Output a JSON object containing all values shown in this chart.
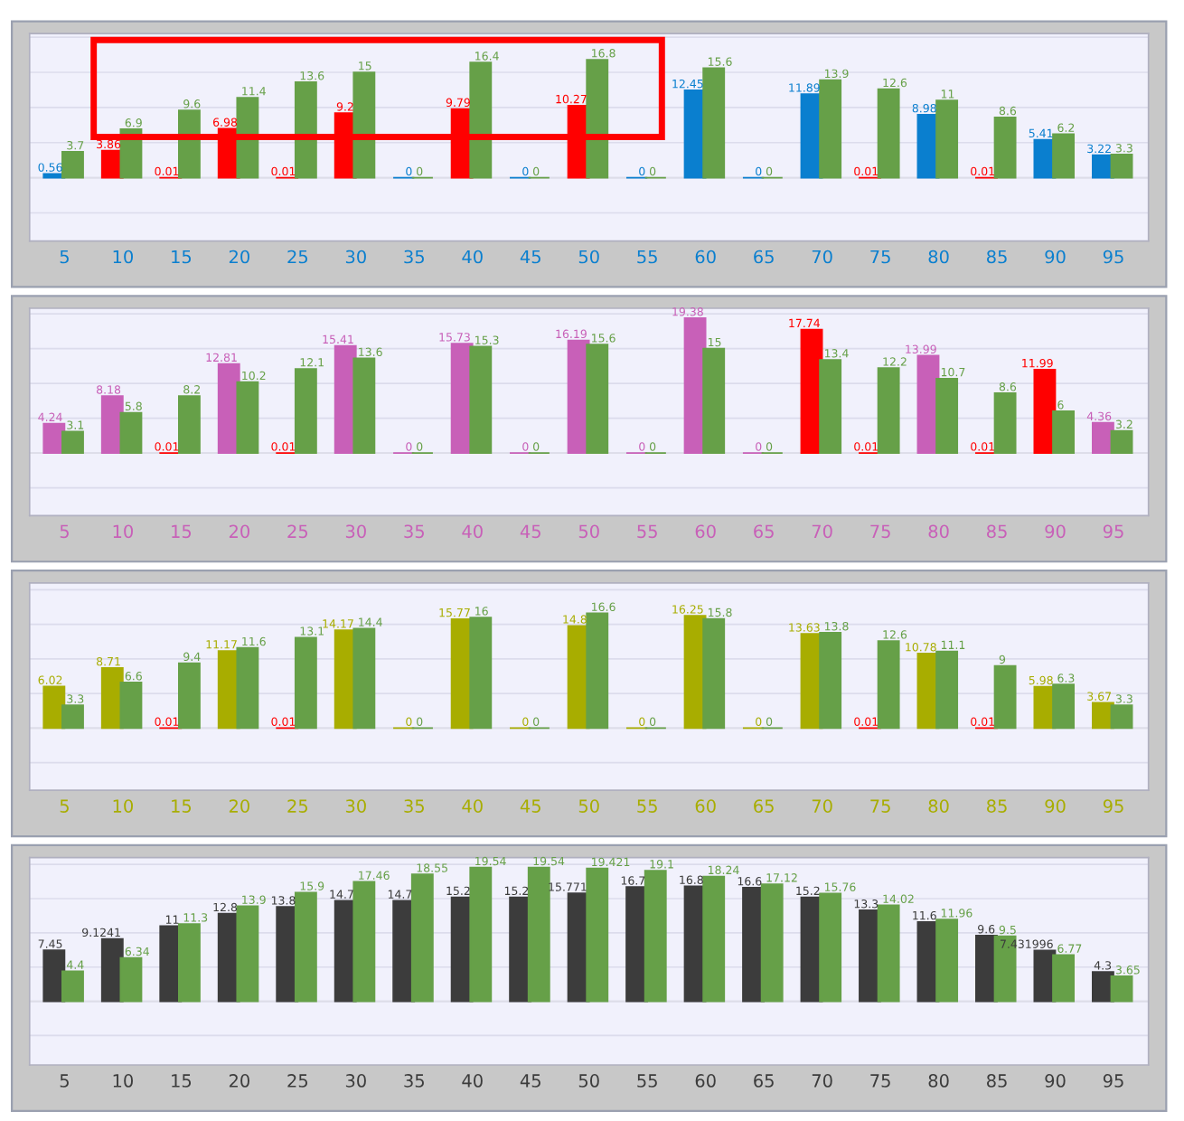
{
  "chart_data": [
    {
      "type": "bar",
      "categories": [
        "5",
        "10",
        "15",
        "20",
        "25",
        "30",
        "35",
        "40",
        "45",
        "50",
        "55",
        "60",
        "65",
        "70",
        "75",
        "80",
        "85",
        "90",
        "95"
      ],
      "ylim": [
        -9,
        20.5
      ],
      "grid": "y",
      "tick_labels": "x",
      "data_labels": true,
      "series": [
        {
          "values": [
            0.56,
            3.86,
            0.01,
            6.98,
            0.01,
            9.2,
            0,
            9.79,
            0,
            10.27,
            0,
            12.45,
            0,
            11.89,
            0.01,
            8.98,
            0.01,
            5.41,
            3.22
          ],
          "colors": [
            "#0a7fcf",
            "#ff0000",
            "#ff0000",
            "#ff0000",
            "#ff0000",
            "#ff0000",
            "#0a7fcf",
            "#ff0000",
            "#0a7fcf",
            "#ff0000",
            "#0a7fcf",
            "#0a7fcf",
            "#0a7fcf",
            "#0a7fcf",
            "#ff0000",
            "#0a7fcf",
            "#ff0000",
            "#0a7fcf",
            "#0a7fcf"
          ]
        },
        {
          "color": "#66a048",
          "values": [
            3.7,
            6.9,
            9.6,
            11.4,
            13.6,
            15,
            0,
            16.4,
            0,
            16.8,
            0,
            15.6,
            0,
            13.9,
            12.6,
            11,
            8.6,
            6.2,
            3.3
          ]
        }
      ]
    },
    {
      "type": "bar",
      "categories": [
        "5",
        "10",
        "15",
        "20",
        "25",
        "30",
        "35",
        "40",
        "45",
        "50",
        "55",
        "60",
        "65",
        "70",
        "75",
        "80",
        "85",
        "90",
        "95"
      ],
      "ylim": [
        -9,
        20.8
      ],
      "grid": "y",
      "tick_labels": "x",
      "data_labels": true,
      "series": [
        {
          "values": [
            4.24,
            8.18,
            0.01,
            12.81,
            0.01,
            15.41,
            0,
            15.73,
            0,
            16.19,
            0,
            19.38,
            0,
            17.74,
            0.01,
            13.99,
            0.01,
            11.99,
            4.36
          ],
          "colors": [
            "#c860b8",
            "#c860b8",
            "#ff0000",
            "#c860b8",
            "#ff0000",
            "#c860b8",
            "#c860b8",
            "#c860b8",
            "#c860b8",
            "#c860b8",
            "#c860b8",
            "#c860b8",
            "#c860b8",
            "#ff0000",
            "#ff0000",
            "#c860b8",
            "#ff0000",
            "#ff0000",
            "#c860b8"
          ]
        },
        {
          "color": "#66a048",
          "values": [
            3.1,
            5.8,
            8.2,
            10.2,
            12.1,
            13.6,
            0,
            15.3,
            0,
            15.6,
            0,
            15,
            0,
            13.4,
            12.2,
            10.7,
            8.6,
            6,
            3.2
          ]
        }
      ]
    },
    {
      "type": "bar",
      "categories": [
        "5",
        "10",
        "15",
        "20",
        "25",
        "30",
        "35",
        "40",
        "45",
        "50",
        "55",
        "60",
        "65",
        "70",
        "75",
        "80",
        "85",
        "90",
        "95"
      ],
      "ylim": [
        -9,
        21
      ],
      "grid": "y",
      "tick_labels": "x",
      "data_labels": true,
      "series": [
        {
          "values": [
            6.02,
            8.71,
            0.01,
            11.17,
            0.01,
            14.17,
            0,
            15.77,
            0,
            14.8,
            0,
            16.25,
            0,
            13.63,
            0.01,
            10.78,
            0.01,
            5.98,
            3.67
          ],
          "colors": [
            "#a8ad00",
            "#a8ad00",
            "#ff0000",
            "#a8ad00",
            "#ff0000",
            "#a8ad00",
            "#a8ad00",
            "#a8ad00",
            "#a8ad00",
            "#a8ad00",
            "#a8ad00",
            "#a8ad00",
            "#a8ad00",
            "#a8ad00",
            "#ff0000",
            "#a8ad00",
            "#ff0000",
            "#a8ad00",
            "#a8ad00"
          ]
        },
        {
          "color": "#66a048",
          "values": [
            3.3,
            6.6,
            9.4,
            11.6,
            13.1,
            14.4,
            0,
            16,
            0,
            16.6,
            0,
            15.8,
            0,
            13.8,
            12.6,
            11.1,
            9,
            6.3,
            3.3
          ]
        }
      ]
    },
    {
      "type": "bar",
      "categories": [
        "5",
        "10",
        "15",
        "20",
        "25",
        "30",
        "35",
        "40",
        "45",
        "50",
        "55",
        "60",
        "65",
        "70",
        "75",
        "80",
        "85",
        "90",
        "95"
      ],
      "ylim": [
        -9.3,
        21
      ],
      "grid": "y",
      "tick_labels": "x",
      "data_labels": true,
      "series": [
        {
          "color": "#3c3c3c",
          "values": [
            7.45,
            9.1241,
            11,
            12.8,
            13.8,
            14.7,
            14.7,
            15.2,
            15.2,
            15.771,
            16.7,
            16.8,
            16.6,
            15.2,
            13.3,
            11.6,
            9.6,
            7.431996,
            4.3
          ]
        },
        {
          "color": "#66a048",
          "values": [
            4.4,
            6.34,
            11.3,
            13.9,
            15.9,
            17.46,
            18.55,
            19.54,
            19.54,
            19.421,
            19.1,
            18.24,
            17.12,
            15.76,
            14.02,
            11.96,
            9.5,
            6.77,
            3.65
          ]
        }
      ]
    }
  ]
}
